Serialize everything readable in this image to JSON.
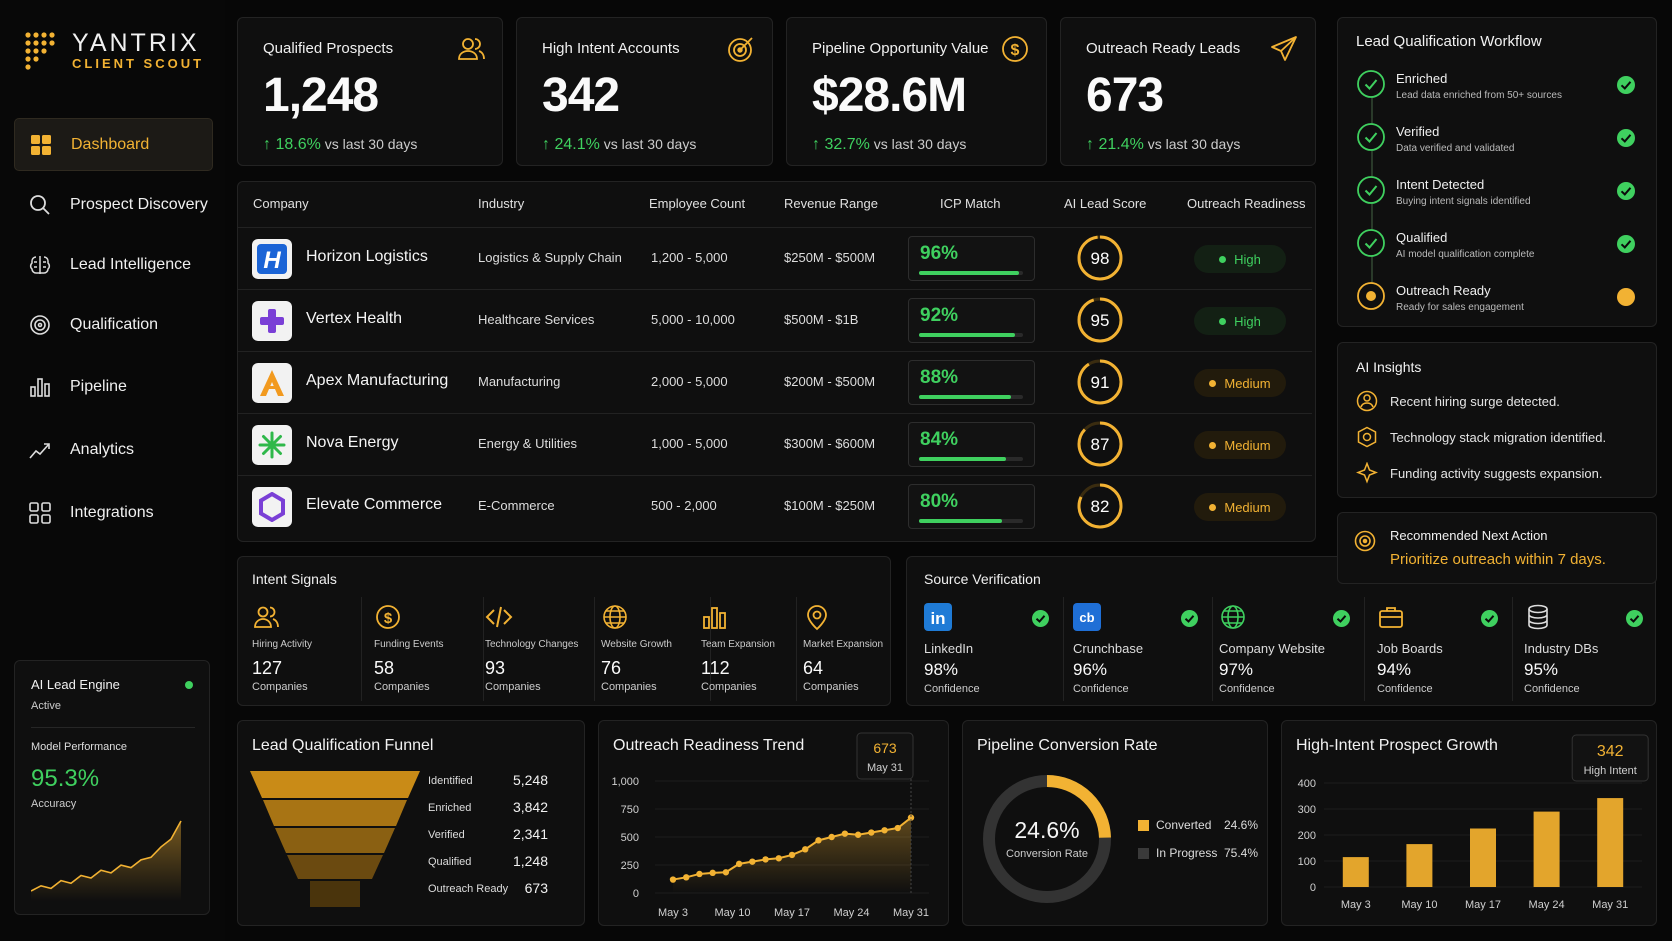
{
  "brand": {
    "name": "YANTRIX",
    "sub": "CLIENT SCOUT"
  },
  "nav": [
    {
      "label": "Dashboard",
      "icon": "grid-icon",
      "active": true
    },
    {
      "label": "Prospect Discovery",
      "icon": "search-icon"
    },
    {
      "label": "Lead Intelligence",
      "icon": "brain-icon"
    },
    {
      "label": "Qualification",
      "icon": "target-icon"
    },
    {
      "label": "Pipeline",
      "icon": "bar-chart-icon"
    },
    {
      "label": "Analytics",
      "icon": "trend-icon"
    },
    {
      "label": "Integrations",
      "icon": "apps-icon"
    }
  ],
  "engine": {
    "title": "AI Lead Engine",
    "status": "Active",
    "perf_label": "Model Performance",
    "perf_value": "95.3%",
    "perf_sub": "Accuracy",
    "spark": [
      18,
      22,
      20,
      26,
      24,
      30,
      28,
      34,
      32,
      38,
      36,
      42,
      44,
      52,
      58,
      72
    ]
  },
  "stats": [
    {
      "label": "Qualified Prospects",
      "value": "1,248",
      "change": "18.6%",
      "period": "vs last 30 days",
      "icon": "users-icon"
    },
    {
      "label": "High Intent Accounts",
      "value": "342",
      "change": "24.1%",
      "period": "vs last 30 days",
      "icon": "target-icon"
    },
    {
      "label": "Pipeline Opportunity Value",
      "value": "$28.6M",
      "change": "32.7%",
      "period": "vs last 30 days",
      "icon": "dollar-icon"
    },
    {
      "label": "Outreach Ready Leads",
      "value": "673",
      "change": "21.4%",
      "period": "vs last 30 days",
      "icon": "send-icon"
    }
  ],
  "table": {
    "headers": [
      "Company",
      "Industry",
      "Employee Count",
      "Revenue Range",
      "ICP Match",
      "AI Lead Score",
      "Outreach Readiness"
    ],
    "rows": [
      {
        "company": "Horizon Logistics",
        "industry": "Logistics & Supply Chain",
        "employees": "1,200 - 5,000",
        "revenue": "$250M - $500M",
        "icp": "96%",
        "icp_value": 96,
        "score": "98",
        "score_value": 98,
        "readiness": "High",
        "logo": "H"
      },
      {
        "company": "Vertex Health",
        "industry": "Healthcare Services",
        "employees": "5,000 - 10,000",
        "revenue": "$500M - $1B",
        "icp": "92%",
        "icp_value": 92,
        "score": "95",
        "score_value": 95,
        "readiness": "High",
        "logo": "+"
      },
      {
        "company": "Apex Manufacturing",
        "industry": "Manufacturing",
        "employees": "2,000 - 5,000",
        "revenue": "$200M - $500M",
        "icp": "88%",
        "icp_value": 88,
        "score": "91",
        "score_value": 91,
        "readiness": "Medium",
        "logo": "A"
      },
      {
        "company": "Nova Energy",
        "industry": "Energy & Utilities",
        "employees": "1,000 - 5,000",
        "revenue": "$300M - $600M",
        "icp": "84%",
        "icp_value": 84,
        "score": "87",
        "score_value": 87,
        "readiness": "Medium",
        "logo": "*"
      },
      {
        "company": "Elevate Commerce",
        "industry": "E-Commerce",
        "employees": "500 - 2,000",
        "revenue": "$100M - $250M",
        "icp": "80%",
        "icp_value": 80,
        "score": "82",
        "score_value": 82,
        "readiness": "Medium",
        "logo": "hex"
      }
    ]
  },
  "intent": {
    "title": "Intent Signals",
    "unit": "Companies",
    "items": [
      {
        "label": "Hiring Activity",
        "value": "127",
        "icon": "users-icon"
      },
      {
        "label": "Funding Events",
        "value": "58",
        "icon": "dollar-icon"
      },
      {
        "label": "Technology Changes",
        "value": "93",
        "icon": "code-icon"
      },
      {
        "label": "Website Growth",
        "value": "76",
        "icon": "globe-icon"
      },
      {
        "label": "Team Expansion",
        "value": "112",
        "icon": "bar-chart-icon"
      },
      {
        "label": "Market Expansion",
        "value": "64",
        "icon": "pin-icon"
      }
    ]
  },
  "source": {
    "title": "Source Verification",
    "unit": "Confidence",
    "items": [
      {
        "label": "LinkedIn",
        "value": "98%",
        "icon": "linkedin-icon"
      },
      {
        "label": "Crunchbase",
        "value": "96%",
        "icon": "crunchbase-icon"
      },
      {
        "label": "Company Website",
        "value": "97%",
        "icon": "globe-icon"
      },
      {
        "label": "Job Boards",
        "value": "94%",
        "icon": "briefcase-icon"
      },
      {
        "label": "Industry DBs",
        "value": "95%",
        "icon": "database-icon"
      }
    ]
  },
  "workflow": {
    "title": "Lead Qualification Workflow",
    "steps": [
      {
        "title": "Enriched",
        "sub": "Lead data enriched from 50+ sources",
        "done": true
      },
      {
        "title": "Verified",
        "sub": "Data verified and validated",
        "done": true
      },
      {
        "title": "Intent Detected",
        "sub": "Buying intent signals identified",
        "done": true
      },
      {
        "title": "Qualified",
        "sub": "AI model qualification complete",
        "done": true
      },
      {
        "title": "Outreach Ready",
        "sub": "Ready for sales engagement",
        "done": false
      }
    ]
  },
  "insights": {
    "title": "AI Insights",
    "items": [
      "Recent hiring surge detected.",
      "Technology stack migration identified.",
      "Funding activity suggests expansion."
    ]
  },
  "next": {
    "title": "Recommended Next Action",
    "text": "Prioritize outreach within 7 days."
  },
  "funnel": {
    "title": "Lead Qualification Funnel",
    "stages": [
      {
        "label": "Identified",
        "value": "5,248"
      },
      {
        "label": "Enriched",
        "value": "3,842"
      },
      {
        "label": "Verified",
        "value": "2,341"
      },
      {
        "label": "Qualified",
        "value": "1,248"
      },
      {
        "label": "Outreach Ready",
        "value": "673"
      }
    ]
  },
  "conversion": {
    "title": "Pipeline Conversion Rate",
    "value": "24.6%",
    "sub": "Conversion Rate",
    "legend": [
      {
        "label": "Converted",
        "value": "24.6%",
        "color": "#f2b233"
      },
      {
        "label": "In Progress",
        "value": "75.4%",
        "color": "#3a3a3a"
      }
    ]
  },
  "chart_data": [
    {
      "type": "line",
      "title": "Outreach Readiness Trend",
      "x_ticks": [
        "May 3",
        "May 10",
        "May 17",
        "May 24",
        "May 31"
      ],
      "y_ticks": [
        "0",
        "250",
        "500",
        "750",
        "1,000"
      ],
      "ylim": [
        0,
        1000
      ],
      "values": [
        120,
        140,
        170,
        180,
        185,
        260,
        280,
        300,
        310,
        340,
        390,
        470,
        500,
        530,
        520,
        540,
        560,
        580,
        673
      ],
      "callout": {
        "value": "673",
        "label": "May 31"
      }
    },
    {
      "type": "bar",
      "title": "High-Intent Prospect Growth",
      "categories": [
        "May 3",
        "May 10",
        "May 17",
        "May 24",
        "May 31"
      ],
      "values": [
        115,
        165,
        225,
        290,
        342
      ],
      "y_ticks": [
        "0",
        "100",
        "200",
        "300",
        "400"
      ],
      "ylim": [
        0,
        400
      ],
      "callout": {
        "value": "342",
        "label": "High Intent"
      }
    }
  ]
}
